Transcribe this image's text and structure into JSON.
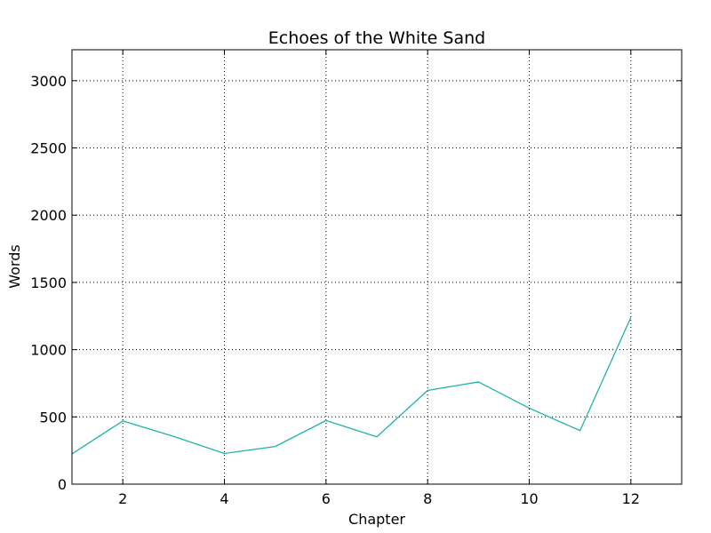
{
  "chart_data": {
    "type": "line",
    "title": "Echoes of the White Sand",
    "xlabel": "Chapter",
    "ylabel": "Words",
    "xlim": [
      1,
      13
    ],
    "ylim": [
      0,
      3230
    ],
    "xticks": [
      2,
      4,
      6,
      8,
      10,
      12
    ],
    "yticks": [
      0,
      500,
      1000,
      1500,
      2000,
      2500,
      3000
    ],
    "grid": true,
    "line_color": "#20b2aa",
    "series": [
      {
        "x": [
          1,
          2,
          3,
          4,
          5,
          6,
          7,
          8,
          9,
          10,
          11,
          12
        ],
        "values": [
          225,
          470,
          355,
          228,
          280,
          473,
          352,
          697,
          760,
          565,
          398,
          1240
        ]
      }
    ]
  }
}
